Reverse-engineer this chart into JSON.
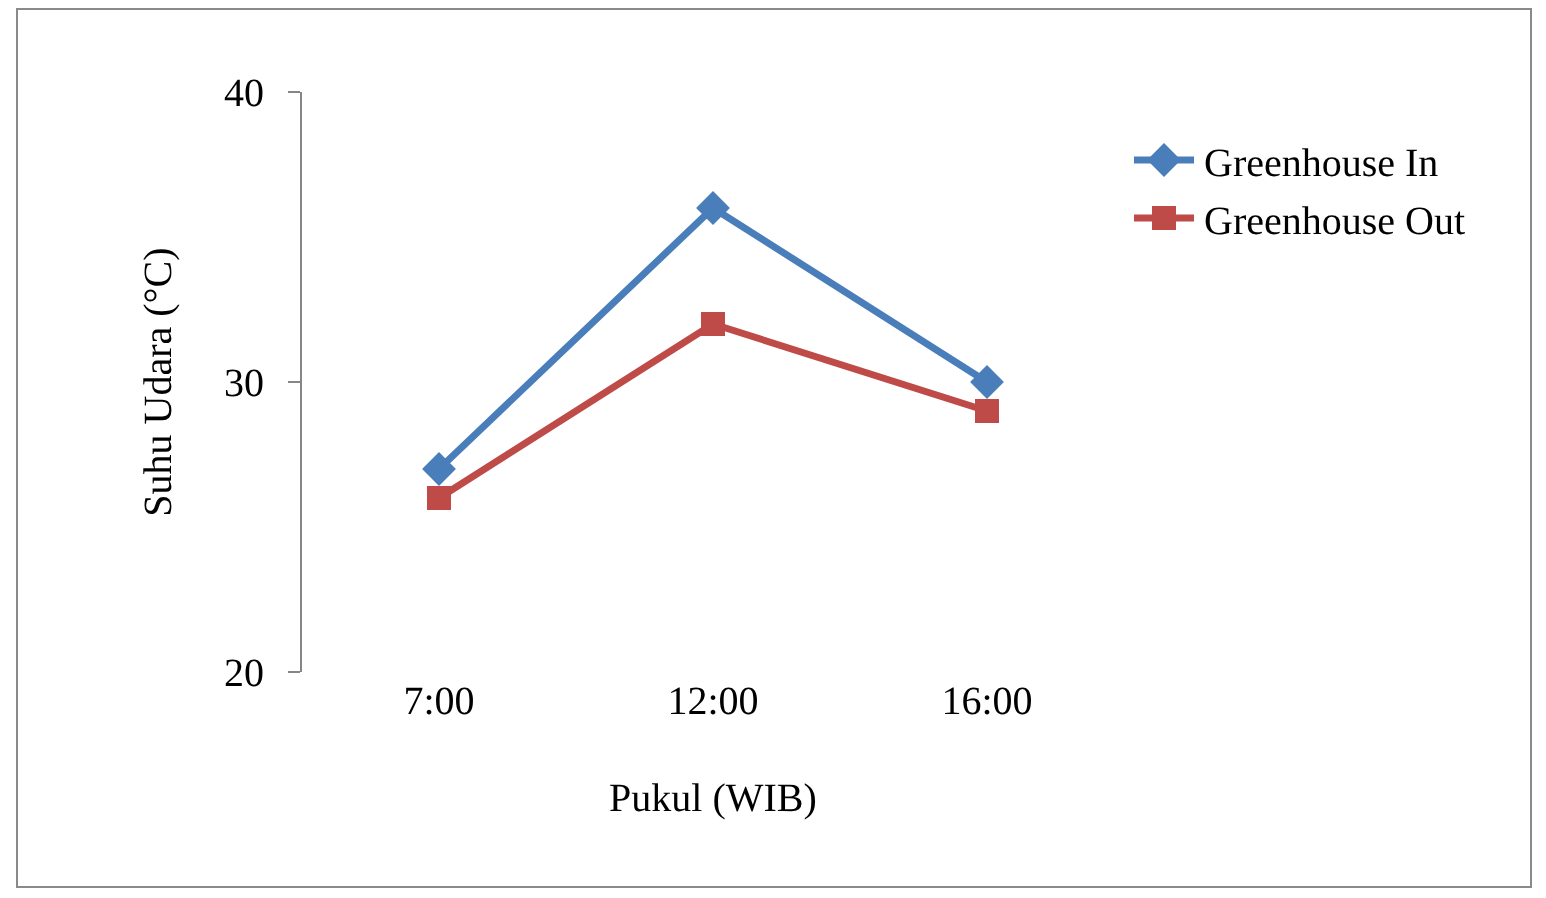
{
  "chart_data": {
    "type": "line",
    "xlabel": "Pukul (WIB)",
    "ylabel": "Suhu Udara (°C)",
    "categories": [
      "7:00",
      "12:00",
      "16:00"
    ],
    "series": [
      {
        "name": "Greenhouse In",
        "color": "#4a7ebb",
        "values": [
          27,
          36,
          30
        ],
        "marker": "diamond"
      },
      {
        "name": "Greenhouse Out",
        "color": "#be4b48",
        "values": [
          26,
          32,
          29
        ],
        "marker": "square"
      }
    ],
    "ylim": [
      20,
      40
    ],
    "yticks": [
      20,
      30,
      40
    ],
    "grid": false,
    "legend": "top right",
    "line_style": "solid"
  }
}
